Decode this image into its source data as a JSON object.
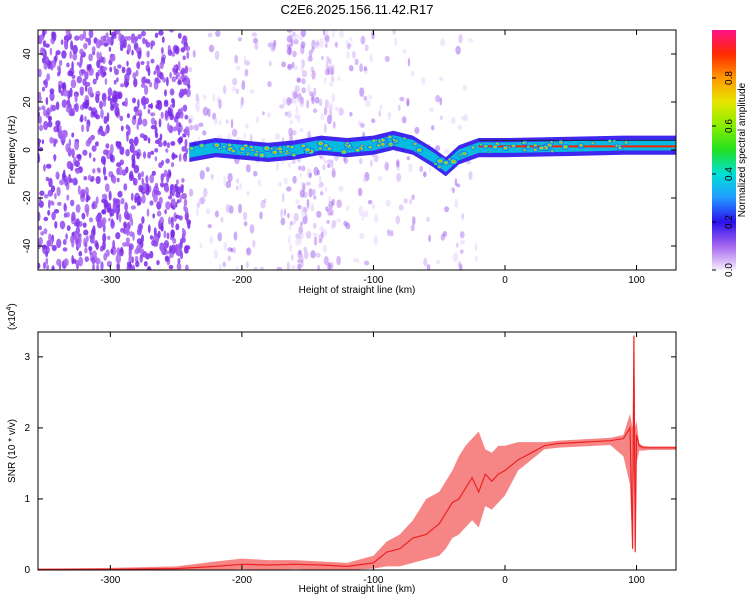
{
  "title": "C2E6.2025.156.11.42.R17",
  "chart_data": [
    {
      "type": "heatmap",
      "xlabel": "Height of straight line (km)",
      "ylabel": "Frequency (Hz)",
      "xlim": [
        -355,
        130
      ],
      "ylim": [
        -50,
        50
      ],
      "x_ticks": [
        -300,
        -200,
        -100,
        0,
        100
      ],
      "y_ticks": [
        -40,
        -20,
        0,
        20,
        40
      ],
      "colorbar": {
        "label": "Normalized spectral amplitude",
        "range": [
          0,
          1
        ],
        "ticks": [
          "0.0",
          "0.2",
          "0.4",
          "0.6",
          "0.8"
        ],
        "tick_values": [
          0,
          0.2,
          0.4,
          0.6,
          0.8
        ]
      },
      "ridge": [
        {
          "x": -240,
          "y": -1
        },
        {
          "x": -220,
          "y": 1
        },
        {
          "x": -200,
          "y": 0
        },
        {
          "x": -180,
          "y": -1
        },
        {
          "x": -160,
          "y": 0
        },
        {
          "x": -140,
          "y": 2
        },
        {
          "x": -120,
          "y": 1
        },
        {
          "x": -100,
          "y": 2
        },
        {
          "x": -85,
          "y": 4
        },
        {
          "x": -70,
          "y": 2
        },
        {
          "x": -55,
          "y": -3
        },
        {
          "x": -45,
          "y": -7
        },
        {
          "x": -35,
          "y": -2
        },
        {
          "x": -20,
          "y": 1
        },
        {
          "x": 0,
          "y": 1
        },
        {
          "x": 50,
          "y": 1.5
        },
        {
          "x": 90,
          "y": 2
        },
        {
          "x": 130,
          "y": 2
        }
      ]
    },
    {
      "type": "line",
      "xlabel": "Height of straight line (km)",
      "ylabel": "SNR (10 * v/v)",
      "y_scale_note": "(x10",
      "y_scale_exp": "4",
      "xlim": [
        -355,
        130
      ],
      "ylim": [
        0,
        3.35
      ],
      "x_ticks": [
        -300,
        -200,
        -100,
        0,
        100
      ],
      "y_ticks": [
        0,
        1,
        2,
        3
      ],
      "color": "#ee2222",
      "x": [
        -355,
        -300,
        -250,
        -220,
        -200,
        -180,
        -160,
        -140,
        -120,
        -100,
        -90,
        -80,
        -70,
        -60,
        -50,
        -45,
        -40,
        -35,
        -30,
        -25,
        -20,
        -15,
        -10,
        -5,
        0,
        10,
        20,
        30,
        40,
        60,
        80,
        90,
        95,
        97,
        98,
        99,
        100,
        102,
        105,
        110,
        120,
        130
      ],
      "y": [
        0.01,
        0.01,
        0.02,
        0.05,
        0.08,
        0.07,
        0.08,
        0.07,
        0.05,
        0.1,
        0.25,
        0.3,
        0.45,
        0.5,
        0.65,
        0.8,
        0.95,
        1.0,
        1.15,
        1.3,
        1.1,
        1.35,
        1.25,
        1.35,
        1.4,
        1.55,
        1.65,
        1.75,
        1.78,
        1.8,
        1.82,
        1.85,
        2.0,
        0.3,
        3.3,
        0.25,
        1.9,
        1.75,
        1.72,
        1.72,
        1.72,
        1.72
      ],
      "upper": [
        0.02,
        0.03,
        0.05,
        0.12,
        0.16,
        0.14,
        0.14,
        0.12,
        0.1,
        0.2,
        0.4,
        0.5,
        0.7,
        1.0,
        1.1,
        1.25,
        1.4,
        1.6,
        1.75,
        1.85,
        1.95,
        1.7,
        1.65,
        1.75,
        1.75,
        1.8,
        1.8,
        1.8,
        1.82,
        1.84,
        1.86,
        1.9,
        2.2,
        2.0,
        3.35,
        2.0,
        2.1,
        1.78,
        1.75,
        1.74,
        1.74,
        1.74
      ],
      "lower": [
        0.0,
        0.0,
        0.0,
        0.0,
        0.01,
        0.0,
        0.01,
        0.0,
        0.0,
        0.02,
        0.05,
        0.05,
        0.1,
        0.15,
        0.2,
        0.3,
        0.45,
        0.5,
        0.6,
        0.7,
        0.6,
        0.9,
        0.85,
        0.95,
        1.05,
        1.4,
        1.55,
        1.7,
        1.72,
        1.74,
        1.76,
        1.6,
        1.2,
        0.25,
        1.4,
        0.25,
        1.5,
        1.68,
        1.68,
        1.69,
        1.69,
        1.69
      ]
    }
  ]
}
